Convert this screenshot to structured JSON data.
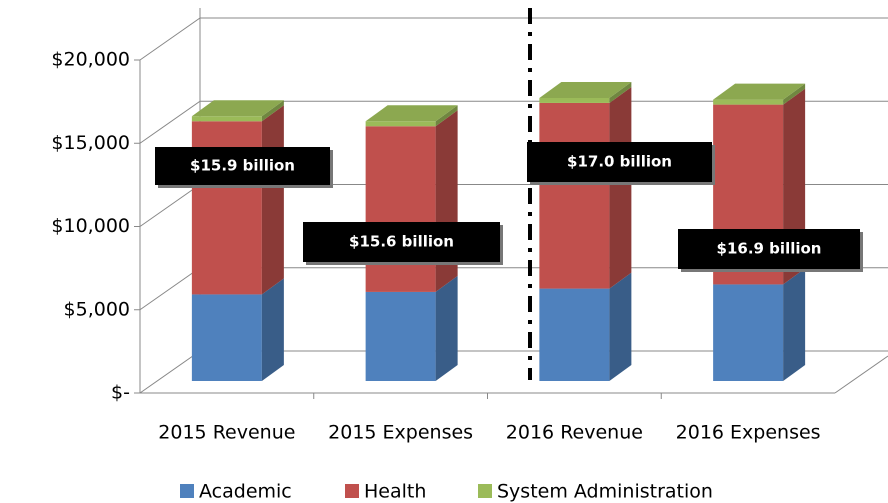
{
  "chart_data": {
    "type": "bar3d",
    "categories": [
      "2015 Revenue",
      "2015 Expenses",
      "2016 Revenue",
      "2016 Expenses"
    ],
    "series": [
      {
        "name": "Academic",
        "color": "#4f81bd",
        "values": [
          5200,
          5350,
          5550,
          5800
        ]
      },
      {
        "name": "Health",
        "color": "#c0504d",
        "values": [
          10400,
          9950,
          11150,
          10800
        ]
      },
      {
        "name": "System Administration",
        "color": "#9bbb59",
        "values": [
          300,
          300,
          300,
          300
        ]
      }
    ],
    "ylim": [
      0,
      20000
    ],
    "yticks": [
      {
        "value": 0,
        "label": "$-"
      },
      {
        "value": 5000,
        "label": "$5,000"
      },
      {
        "value": 10000,
        "label": "$10,000"
      },
      {
        "value": 15000,
        "label": "$15,000"
      },
      {
        "value": 20000,
        "label": "$20,000"
      }
    ],
    "grid": true,
    "annotations": [
      "$15.9 billion",
      "$15.6 billion",
      "$17.0 billion",
      "$16.9 billion"
    ],
    "legend": "bottom"
  }
}
